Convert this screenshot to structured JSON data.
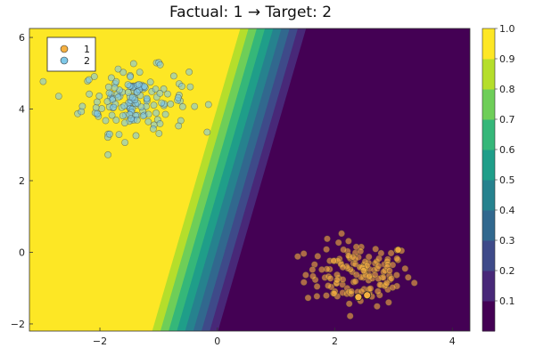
{
  "chart_data": {
    "type": "scatter",
    "title": "Factual: 1 → Target: 2",
    "xlabel": "",
    "ylabel": "",
    "xlim": [
      -3.2,
      4.3
    ],
    "ylim": [
      -2.2,
      6.25
    ],
    "xticks": [
      -2,
      0,
      2,
      4
    ],
    "yticks": [
      -2,
      0,
      2,
      4,
      6
    ],
    "grid": false,
    "legend": {
      "placement": "top-left",
      "entries": [
        {
          "name": "1",
          "color": "#F5B041"
        },
        {
          "name": "2",
          "color": "#7EC8E8"
        }
      ]
    },
    "decision_surface": {
      "description_levels": [
        0.0,
        0.1,
        0.2,
        0.3,
        0.4,
        0.5,
        0.6,
        0.7,
        0.8,
        0.9,
        1.0
      ],
      "boundary_line_p05": {
        "x_at_y_min": -0.55,
        "x_at_y_max": 0.95
      },
      "transition_width": 1.4,
      "high_side": "left",
      "colormap": "viridis"
    },
    "colorbar": {
      "ticks": [
        "0.1",
        "0.2",
        "0.3",
        "0.4",
        "0.5",
        "0.6",
        "0.7",
        "0.8",
        "0.9",
        "1.0"
      ],
      "range": [
        0.0,
        1.0
      ]
    },
    "series": [
      {
        "name": "1",
        "color": "#F5B041",
        "center": [
          2.4,
          -0.6
        ],
        "spread": 0.45,
        "count": 150
      },
      {
        "name": "2",
        "color": "#7EC8E8",
        "center": [
          -1.4,
          4.25
        ],
        "spread": 0.45,
        "count": 150
      }
    ],
    "highlighted_points": [
      {
        "x": 2.4,
        "y": -1.25
      },
      {
        "x": 2.55,
        "y": -1.2
      }
    ]
  }
}
